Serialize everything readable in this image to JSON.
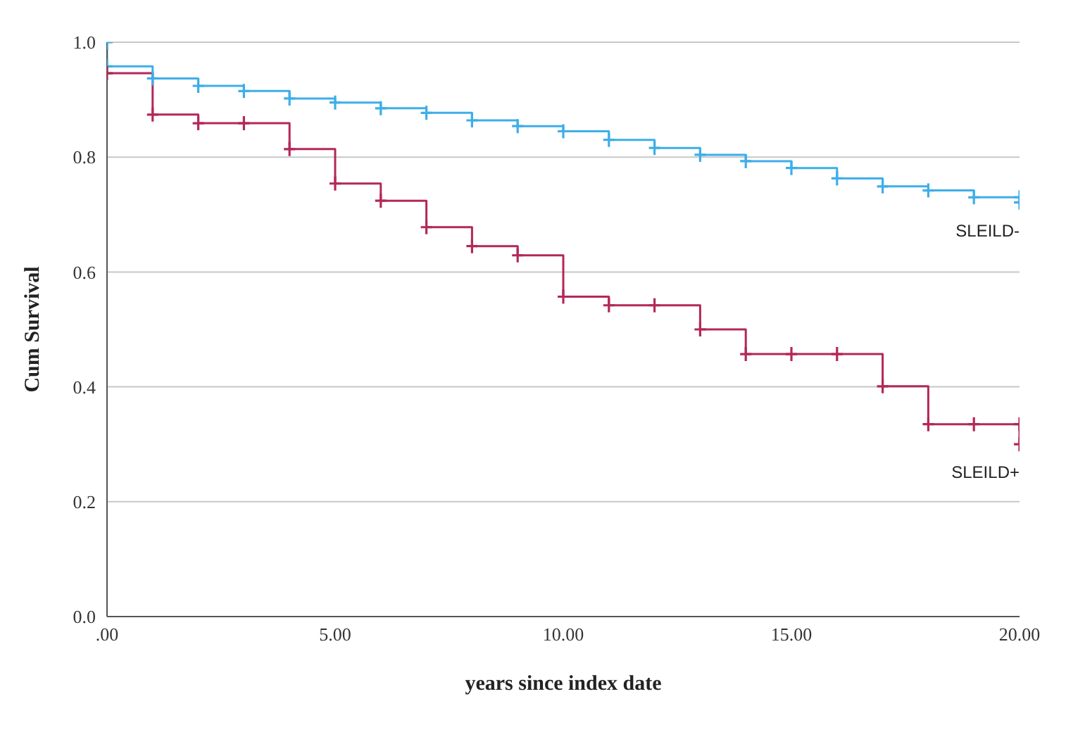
{
  "chart_data": {
    "type": "step",
    "xlabel": "years since index date",
    "ylabel": "Cum Survival",
    "xlim": [
      0,
      20
    ],
    "xticks": [
      {
        "value": 0,
        "label": ".00"
      },
      {
        "value": 5,
        "label": "5.00"
      },
      {
        "value": 10,
        "label": "10.00"
      },
      {
        "value": 15,
        "label": "15.00"
      },
      {
        "value": 20,
        "label": "20.00"
      }
    ],
    "ylim": [
      0,
      1
    ],
    "yticks": [
      {
        "value": 0,
        "label": "0.0"
      },
      {
        "value": 0.2,
        "label": "0.2"
      },
      {
        "value": 0.4,
        "label": "0.4"
      },
      {
        "value": 0.6,
        "label": "0.6"
      },
      {
        "value": 0.8,
        "label": "0.8"
      },
      {
        "value": 1,
        "label": "1.0"
      }
    ],
    "grid": "y",
    "legend": false,
    "marker": "cross",
    "line_style": "solid",
    "series": [
      {
        "name": "SLEILD-",
        "color": "#3eaee8",
        "x": [
          0,
          0,
          1,
          2,
          3,
          4,
          5,
          6,
          7,
          8,
          9,
          10,
          11,
          12,
          13,
          14,
          15,
          16,
          17,
          18,
          19,
          20,
          20
        ],
        "values": [
          1.0,
          0.958,
          0.937,
          0.924,
          0.915,
          0.902,
          0.895,
          0.885,
          0.877,
          0.864,
          0.854,
          0.845,
          0.83,
          0.816,
          0.804,
          0.793,
          0.781,
          0.763,
          0.749,
          0.742,
          0.73,
          0.73,
          0.721
        ]
      },
      {
        "name": "SLEILD+",
        "color": "#b3285a",
        "x": [
          0,
          1,
          2,
          3,
          4,
          5,
          6,
          7,
          8,
          9,
          10,
          11,
          12,
          13,
          14,
          15,
          16,
          17,
          18,
          19,
          20,
          20
        ],
        "values": [
          0.946,
          0.874,
          0.859,
          0.859,
          0.814,
          0.754,
          0.724,
          0.678,
          0.645,
          0.629,
          0.557,
          0.542,
          0.542,
          0.5,
          0.457,
          0.457,
          0.457,
          0.401,
          0.335,
          0.335,
          0.335,
          0.3
        ]
      }
    ]
  }
}
